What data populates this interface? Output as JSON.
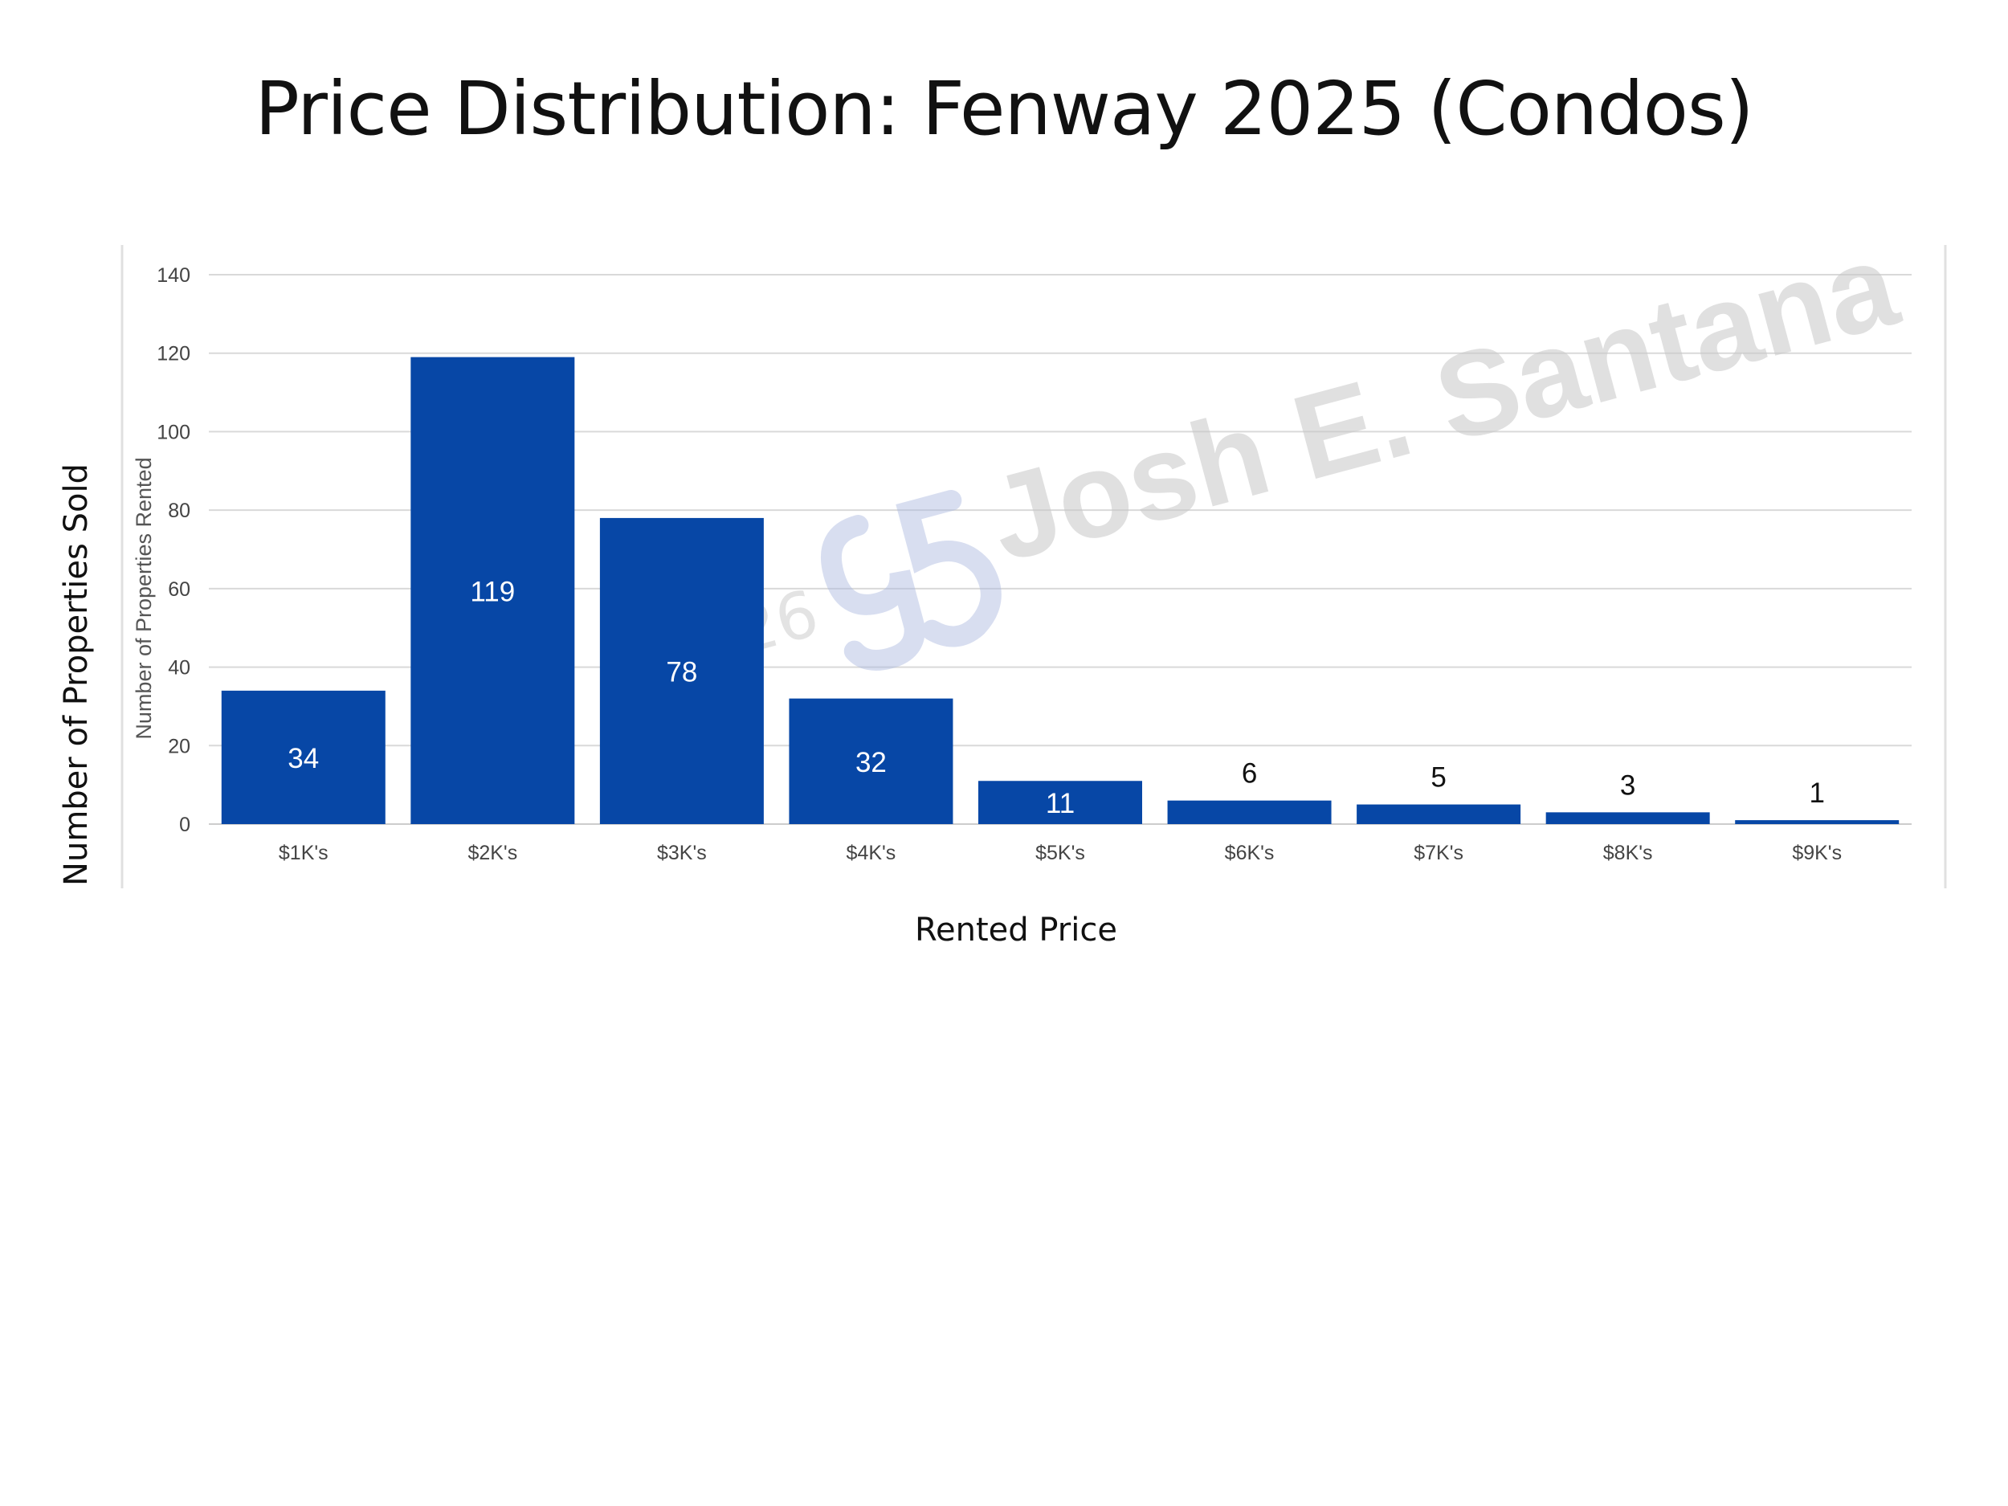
{
  "page": {
    "title": "Price Distribution: Fenway 2025 (Condos)",
    "ylabel": "Number of Properties Sold",
    "xlabel": "Rented Price"
  },
  "watermark": {
    "name": "Josh E. Santana",
    "copyright": "©2026",
    "logo_icon": "js-monogram-logo"
  },
  "colors": {
    "bar": "#0747a6",
    "label_inside": "#ffffff",
    "label_outside": "#111111",
    "grid": "#d9d9d9"
  },
  "chart_data": {
    "type": "bar",
    "categories": [
      "$1K's",
      "$2K's",
      "$3K's",
      "$4K's",
      "$5K's",
      "$6K's",
      "$7K's",
      "$8K's",
      "$9K's"
    ],
    "values": [
      34,
      119,
      78,
      32,
      11,
      6,
      5,
      3,
      1
    ],
    "ylabel": "Number of Properties Rented",
    "ylim": [
      0,
      140
    ],
    "yticks": [
      0,
      20,
      40,
      60,
      80,
      100,
      120,
      140
    ],
    "grid": true,
    "legend": "none"
  }
}
